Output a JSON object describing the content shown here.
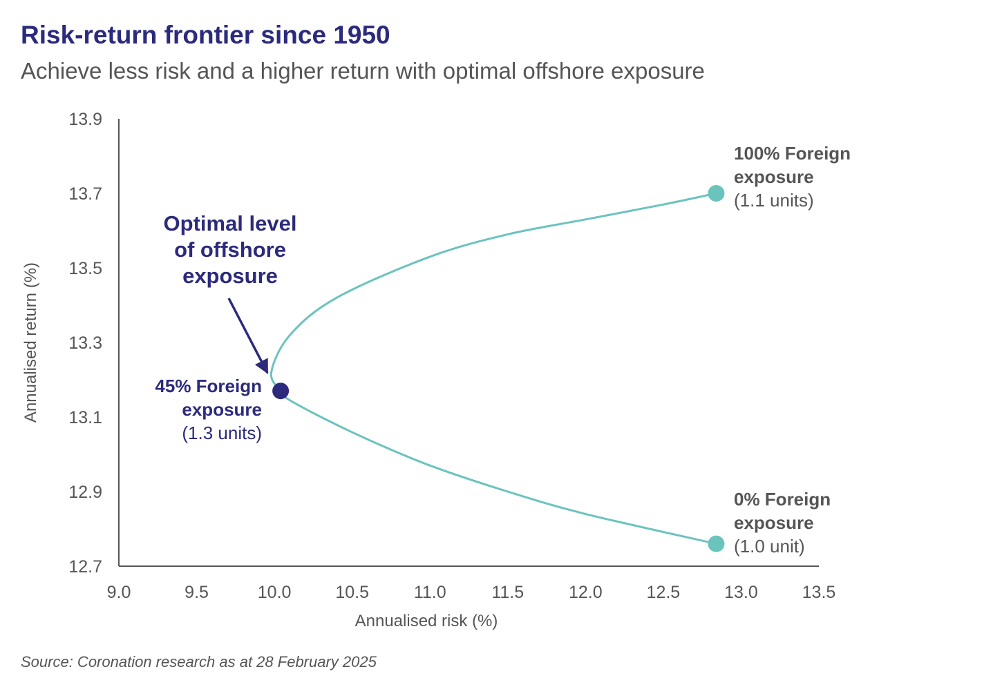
{
  "header": {
    "title": "Risk-return frontier since 1950",
    "subtitle": "Achieve less risk and a higher return with optimal offshore exposure"
  },
  "footer": {
    "source": "Source: Coronation research as at 28 February 2025"
  },
  "colors": {
    "title": "#2b2a7c",
    "curve": "#6bc3bd",
    "optimal_point": "#2b2a7c",
    "axis": "#555555"
  },
  "chart_data": {
    "type": "line",
    "title": "Risk-return frontier since 1950",
    "xlabel": "Annualised risk (%)",
    "ylabel": "Annualised return (%)",
    "xlim": [
      9.0,
      13.5
    ],
    "ylim": [
      12.7,
      13.9
    ],
    "x_ticks": [
      "9.0",
      "9.5",
      "10.0",
      "10.5",
      "11.0",
      "11.5",
      "12.0",
      "12.5",
      "13.0",
      "13.5"
    ],
    "y_ticks": [
      "12.7",
      "12.9",
      "13.1",
      "13.3",
      "13.5",
      "13.7",
      "13.9"
    ],
    "grid": false,
    "series": [
      {
        "name": "Risk-return frontier",
        "x": [
          12.84,
          12.0,
          11.5,
          11.0,
          10.6,
          10.3,
          10.08,
          10.04,
          9.98,
          10.1,
          10.4,
          11.0,
          11.5,
          12.0,
          12.5,
          12.84
        ],
        "y": [
          12.76,
          12.84,
          12.9,
          12.97,
          13.04,
          13.1,
          13.15,
          13.17,
          13.22,
          13.32,
          13.42,
          13.53,
          13.59,
          13.63,
          13.67,
          13.7
        ]
      }
    ],
    "points": [
      {
        "label": "100% Foreign exposure",
        "line1": "100% Foreign",
        "line2": "exposure",
        "units": "(1.1 units)",
        "x": 12.84,
        "y": 13.7,
        "highlight": false
      },
      {
        "label": "45% Foreign exposure",
        "line1": "45% Foreign",
        "line2": "exposure",
        "units": "(1.3 units)",
        "x": 10.04,
        "y": 13.17,
        "highlight": true
      },
      {
        "label": "0% Foreign exposure",
        "line1": "0% Foreign",
        "line2": "exposure",
        "units": "(1.0 unit)",
        "x": 12.84,
        "y": 12.76,
        "highlight": false
      }
    ],
    "annotation": {
      "lines": [
        "Optimal level",
        "of offshore",
        "exposure"
      ],
      "points_to": "45% Foreign exposure"
    }
  }
}
